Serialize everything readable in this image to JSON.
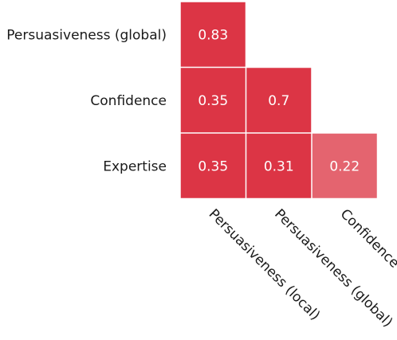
{
  "chart_data": {
    "type": "heatmap",
    "rows": [
      "Persuasiveness (global)",
      "Confidence",
      "Expertise"
    ],
    "columns": [
      "Persuasiveness (local)",
      "Persuasiveness (global)",
      "Confidence"
    ],
    "cells": [
      {
        "row": "Persuasiveness (global)",
        "column": "Persuasiveness (local)",
        "value": 0.83,
        "label": "0.83"
      },
      {
        "row": "Confidence",
        "column": "Persuasiveness (local)",
        "value": 0.35,
        "label": "0.35"
      },
      {
        "row": "Confidence",
        "column": "Persuasiveness (global)",
        "value": 0.7,
        "label": "0.7"
      },
      {
        "row": "Expertise",
        "column": "Persuasiveness (local)",
        "value": 0.35,
        "label": "0.35"
      },
      {
        "row": "Expertise",
        "column": "Persuasiveness (global)",
        "value": 0.31,
        "label": "0.31"
      },
      {
        "row": "Expertise",
        "column": "Confidence",
        "value": 0.22,
        "label": "0.22"
      }
    ],
    "layout": "lower-triangle",
    "title": "",
    "xlabel": "",
    "ylabel": "",
    "colors": {
      "strong": "#dc3545",
      "weak": "#e67079"
    }
  }
}
